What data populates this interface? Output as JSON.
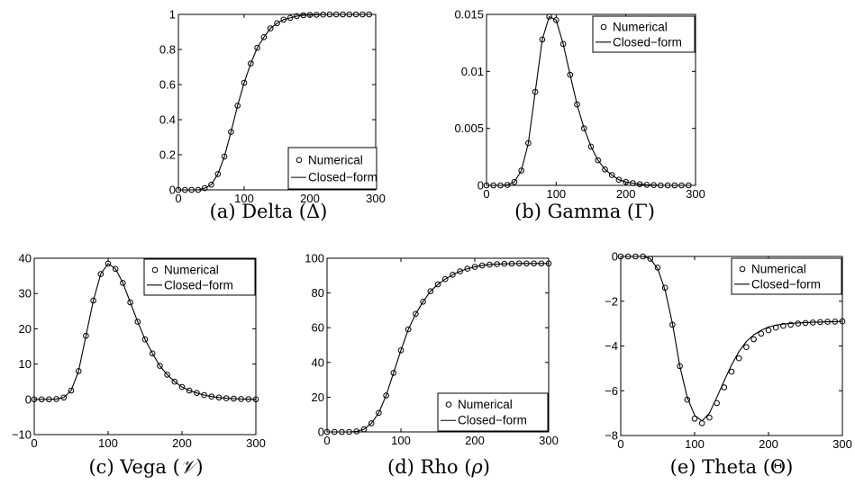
{
  "chart_data": [
    {
      "type": "line",
      "title": "",
      "caption_prefix": "(a) Delta (",
      "caption_symbol": "Δ",
      "caption_suffix": ")",
      "xlabel": "",
      "ylabel": "",
      "xlim": [
        0,
        300
      ],
      "ylim": [
        0,
        1
      ],
      "xticks": [
        "0",
        "100",
        "200",
        "300"
      ],
      "xtick_values": [
        0,
        100,
        200,
        300
      ],
      "yticks": [
        "0",
        "0.2",
        "0.4",
        "0.6",
        "0.8",
        "1"
      ],
      "ytick_values": [
        0,
        0.2,
        0.4,
        0.6,
        0.8,
        1
      ],
      "legend_placement": "bottom-right",
      "series": [
        {
          "name": "Numerical",
          "style": "markers",
          "x": [
            0,
            10,
            20,
            30,
            40,
            50,
            60,
            70,
            80,
            90,
            100,
            110,
            120,
            130,
            140,
            150,
            160,
            170,
            180,
            190,
            200,
            210,
            220,
            230,
            240,
            250,
            260,
            270,
            280,
            290
          ],
          "y": [
            0,
            0,
            0,
            0,
            0.01,
            0.03,
            0.09,
            0.19,
            0.33,
            0.48,
            0.61,
            0.72,
            0.81,
            0.87,
            0.92,
            0.95,
            0.97,
            0.98,
            0.99,
            0.995,
            0.997,
            0.998,
            0.999,
            1,
            1,
            1,
            1,
            1,
            1,
            1
          ]
        },
        {
          "name": "Closed−form",
          "style": "line",
          "x": [
            0,
            10,
            20,
            30,
            40,
            50,
            60,
            70,
            80,
            90,
            100,
            110,
            120,
            130,
            140,
            150,
            160,
            170,
            180,
            190,
            200,
            210,
            220,
            230,
            240,
            250,
            260,
            270,
            280,
            290
          ],
          "y": [
            0,
            0,
            0,
            0,
            0.01,
            0.03,
            0.09,
            0.19,
            0.33,
            0.48,
            0.61,
            0.72,
            0.81,
            0.87,
            0.92,
            0.95,
            0.97,
            0.98,
            0.99,
            0.995,
            0.997,
            0.998,
            0.999,
            1,
            1,
            1,
            1,
            1,
            1,
            1
          ]
        }
      ]
    },
    {
      "type": "line",
      "title": "",
      "caption_prefix": "(b) Gamma (",
      "caption_symbol": "Γ",
      "caption_suffix": ")",
      "xlabel": "",
      "ylabel": "",
      "xlim": [
        0,
        300
      ],
      "ylim": [
        0,
        0.015
      ],
      "xticks": [
        "0",
        "100",
        "200",
        "300"
      ],
      "xtick_values": [
        0,
        100,
        200,
        300
      ],
      "yticks": [
        "0",
        "0.005",
        "0.01",
        "0.015"
      ],
      "ytick_values": [
        0,
        0.005,
        0.01,
        0.015
      ],
      "legend_placement": "top-right",
      "series": [
        {
          "name": "Numerical",
          "style": "markers",
          "x": [
            0,
            10,
            20,
            30,
            40,
            50,
            60,
            70,
            80,
            90,
            100,
            110,
            120,
            130,
            140,
            150,
            160,
            170,
            180,
            190,
            200,
            210,
            220,
            230,
            240,
            250,
            260,
            270,
            280,
            290
          ],
          "y": [
            0,
            0,
            0,
            3e-05,
            0.0003,
            0.0013,
            0.0037,
            0.0082,
            0.0128,
            0.0148,
            0.0145,
            0.0124,
            0.0097,
            0.0071,
            0.005,
            0.0034,
            0.0022,
            0.0014,
            0.0009,
            0.0005,
            0.0003,
            0.0002,
            0.0001,
            5e-05,
            2e-05,
            0,
            0,
            0,
            0,
            0
          ]
        },
        {
          "name": "Closed−form",
          "style": "line",
          "x": [
            0,
            10,
            20,
            30,
            40,
            50,
            60,
            70,
            80,
            90,
            100,
            110,
            120,
            130,
            140,
            150,
            160,
            170,
            180,
            190,
            200,
            210,
            220,
            230,
            240,
            250,
            260,
            270,
            280,
            290
          ],
          "y": [
            0,
            0,
            0,
            3e-05,
            0.0003,
            0.0013,
            0.0037,
            0.0082,
            0.0128,
            0.0148,
            0.0145,
            0.0124,
            0.0097,
            0.0071,
            0.005,
            0.0034,
            0.0022,
            0.0014,
            0.0009,
            0.0005,
            0.0003,
            0.0002,
            0.0001,
            5e-05,
            2e-05,
            0,
            0,
            0,
            0,
            0
          ]
        }
      ]
    },
    {
      "type": "line",
      "title": "",
      "caption_prefix": "(c) Vega (",
      "caption_symbol": "𝒱",
      "caption_suffix": ")",
      "xlabel": "",
      "ylabel": "",
      "xlim": [
        0,
        300
      ],
      "ylim": [
        -10,
        40
      ],
      "xticks": [
        "0",
        "100",
        "200",
        "300"
      ],
      "xtick_values": [
        0,
        100,
        200,
        300
      ],
      "yticks": [
        "−10",
        "0",
        "10",
        "20",
        "30",
        "40"
      ],
      "ytick_values": [
        -10,
        0,
        10,
        20,
        30,
        40
      ],
      "legend_placement": "top-right",
      "series": [
        {
          "name": "Numerical",
          "style": "markers",
          "x": [
            0,
            10,
            20,
            30,
            40,
            50,
            60,
            70,
            80,
            90,
            100,
            110,
            120,
            130,
            140,
            150,
            160,
            170,
            180,
            190,
            200,
            210,
            220,
            230,
            240,
            250,
            260,
            270,
            280,
            290,
            300
          ],
          "y": [
            0,
            0,
            0,
            0.1,
            0.5,
            2.5,
            8,
            18,
            28,
            35.5,
            38.5,
            37,
            33,
            27.5,
            22,
            17,
            13,
            9.5,
            7,
            5,
            3.5,
            2.5,
            1.8,
            1.2,
            0.8,
            0.5,
            0.3,
            0.2,
            0.1,
            0.05,
            0
          ]
        },
        {
          "name": "Closed−form",
          "style": "line",
          "x": [
            0,
            10,
            20,
            30,
            40,
            50,
            60,
            70,
            80,
            90,
            100,
            110,
            120,
            130,
            140,
            150,
            160,
            170,
            180,
            190,
            200,
            210,
            220,
            230,
            240,
            250,
            260,
            270,
            280,
            290,
            300
          ],
          "y": [
            0,
            0,
            0,
            0.1,
            0.5,
            2.5,
            8,
            18,
            28,
            35.5,
            38.5,
            37,
            33,
            27.5,
            22,
            17,
            13,
            9.5,
            7,
            5,
            3.5,
            2.5,
            1.8,
            1.2,
            0.8,
            0.5,
            0.3,
            0.2,
            0.1,
            0.05,
            0
          ]
        }
      ]
    },
    {
      "type": "line",
      "title": "",
      "caption_prefix": "(d) Rho (",
      "caption_symbol": "ρ",
      "caption_suffix": ")",
      "xlabel": "",
      "ylabel": "",
      "xlim": [
        0,
        300
      ],
      "ylim": [
        0,
        100
      ],
      "xticks": [
        "0",
        "100",
        "200",
        "300"
      ],
      "xtick_values": [
        0,
        100,
        200,
        300
      ],
      "yticks": [
        "0",
        "20",
        "40",
        "60",
        "80",
        "100"
      ],
      "ytick_values": [
        0,
        20,
        40,
        60,
        80,
        100
      ],
      "legend_placement": "bottom-right",
      "series": [
        {
          "name": "Numerical",
          "style": "markers",
          "x": [
            0,
            10,
            20,
            30,
            40,
            50,
            60,
            70,
            80,
            90,
            100,
            110,
            120,
            130,
            140,
            150,
            160,
            170,
            180,
            190,
            200,
            210,
            220,
            230,
            240,
            250,
            260,
            270,
            280,
            290,
            300
          ],
          "y": [
            0,
            0,
            0,
            0,
            0.3,
            1.5,
            5,
            11,
            21,
            34,
            47,
            59,
            68,
            75,
            81,
            85,
            88,
            90.5,
            92.5,
            94,
            95,
            95.8,
            96.3,
            96.6,
            96.8,
            96.9,
            97,
            97,
            97,
            97,
            97
          ]
        },
        {
          "name": "Closed−form",
          "style": "line",
          "x": [
            0,
            10,
            20,
            30,
            40,
            50,
            60,
            70,
            80,
            90,
            100,
            110,
            120,
            130,
            140,
            150,
            160,
            170,
            180,
            190,
            200,
            210,
            220,
            230,
            240,
            250,
            260,
            270,
            280,
            290,
            300
          ],
          "y": [
            0,
            0,
            0,
            0,
            0.3,
            1.5,
            5,
            11,
            21,
            34,
            47,
            59,
            68,
            75,
            81,
            85,
            88,
            90.5,
            92.5,
            94,
            95,
            95.8,
            96.3,
            96.6,
            96.8,
            96.9,
            97,
            97,
            97,
            97,
            97
          ]
        }
      ]
    },
    {
      "type": "line",
      "title": "",
      "caption_prefix": "(e) Theta (",
      "caption_symbol": "Θ",
      "caption_suffix": ")",
      "xlabel": "",
      "ylabel": "",
      "xlim": [
        0,
        300
      ],
      "ylim": [
        -8,
        0
      ],
      "xticks": [
        "0",
        "100",
        "200",
        "300"
      ],
      "xtick_values": [
        0,
        100,
        200,
        300
      ],
      "yticks": [
        "−8",
        "−6",
        "−4",
        "−2",
        "0"
      ],
      "ytick_values": [
        -8,
        -6,
        -4,
        -2,
        0
      ],
      "legend_placement": "top-right",
      "series": [
        {
          "name": "Numerical",
          "style": "markers",
          "x": [
            0,
            10,
            20,
            30,
            40,
            50,
            60,
            70,
            80,
            90,
            100,
            110,
            120,
            130,
            140,
            150,
            160,
            170,
            180,
            190,
            200,
            210,
            220,
            230,
            240,
            250,
            260,
            270,
            280,
            290,
            300
          ],
          "y": [
            0,
            0,
            0,
            0,
            -0.1,
            -0.5,
            -1.4,
            -3.05,
            -4.9,
            -6.4,
            -7.25,
            -7.45,
            -7.2,
            -6.55,
            -5.85,
            -5.15,
            -4.55,
            -4.05,
            -3.7,
            -3.45,
            -3.3,
            -3.18,
            -3.1,
            -3.05,
            -3.0,
            -2.97,
            -2.95,
            -2.93,
            -2.92,
            -2.91,
            -2.9
          ]
        },
        {
          "name": "Closed−form",
          "style": "line",
          "x": [
            0,
            10,
            20,
            30,
            40,
            50,
            60,
            70,
            80,
            90,
            100,
            110,
            120,
            130,
            140,
            150,
            160,
            170,
            180,
            190,
            200,
            210,
            220,
            230,
            240,
            250,
            260,
            270,
            280,
            290,
            300
          ],
          "y": [
            0,
            0,
            0,
            0,
            -0.1,
            -0.55,
            -1.5,
            -3.0,
            -4.9,
            -6.3,
            -7.1,
            -7.35,
            -7.0,
            -6.3,
            -5.55,
            -4.85,
            -4.25,
            -3.8,
            -3.5,
            -3.3,
            -3.15,
            -3.07,
            -3.02,
            -2.99,
            -2.97,
            -2.95,
            -2.94,
            -2.93,
            -2.92,
            -2.91,
            -2.9
          ]
        }
      ]
    }
  ]
}
